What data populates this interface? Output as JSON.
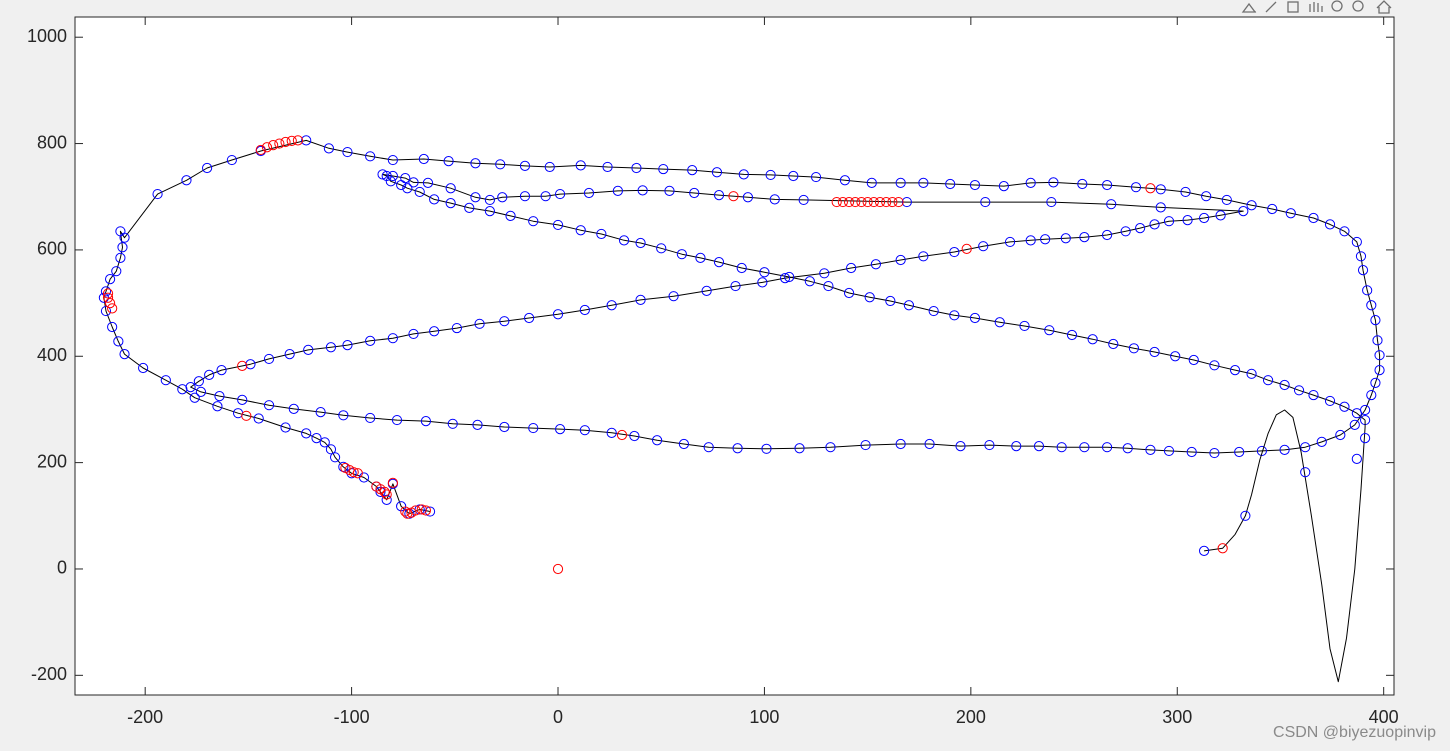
{
  "chart_data": {
    "type": "line",
    "xlim": [
      -234,
      405
    ],
    "ylim": [
      -237,
      1038
    ],
    "xticks": [
      -200,
      -100,
      0,
      100,
      200,
      300,
      400
    ],
    "yticks": [
      -200,
      0,
      200,
      400,
      600,
      800,
      1000
    ],
    "series": [
      {
        "color": "#000000",
        "marker_color": "#0000ff",
        "x": [
          -62,
          -67,
          -72,
          -76,
          -80,
          -83,
          -86,
          -88,
          -94,
          -100,
          -104,
          -108,
          -110,
          -113,
          -117,
          -122,
          -132,
          -145,
          -155,
          -165,
          -176,
          -182,
          -190,
          -201,
          -210,
          -213,
          -216,
          -219,
          -220,
          -219,
          -217,
          -214,
          -212,
          -211,
          -212,
          -210,
          -194,
          -180,
          -170,
          -158,
          -144,
          -122,
          -111,
          -102,
          -91,
          -80,
          -65,
          -53,
          -40,
          -28,
          -16,
          -4,
          11,
          24,
          38,
          51,
          65,
          77,
          90,
          103,
          114,
          125,
          139,
          152,
          166,
          177,
          190,
          202,
          216,
          229,
          240,
          254,
          266,
          280,
          292,
          304,
          314,
          324,
          336,
          346,
          355,
          366,
          374,
          381,
          387,
          389,
          390,
          392,
          394,
          396,
          397,
          398,
          398,
          396,
          394,
          391,
          386,
          379,
          370,
          362,
          352,
          341,
          330,
          318,
          307,
          296,
          287,
          276,
          266,
          255,
          244,
          233,
          222,
          209,
          195,
          180,
          166,
          149,
          132,
          117,
          101,
          87,
          73,
          61,
          48,
          37,
          26,
          13,
          1,
          -12,
          -26,
          -39,
          -51,
          -64,
          -78,
          -91,
          -104,
          -115,
          -128,
          -140,
          -153,
          -164,
          -173,
          -178,
          -174,
          -169,
          -163,
          -149,
          -140,
          -130,
          -121,
          -110,
          -102,
          -91,
          -80,
          -70,
          -60,
          -49,
          -38,
          -26,
          -14,
          0,
          13,
          26,
          40,
          56,
          72,
          86,
          99,
          110,
          129,
          142,
          154,
          166,
          177,
          192,
          206,
          219,
          229,
          236,
          246,
          255,
          266,
          275,
          282,
          289,
          296,
          305,
          313,
          321,
          332,
          292,
          268,
          239,
          207,
          169,
          119,
          105,
          92,
          78,
          66,
          54,
          41,
          29,
          15,
          1,
          -6,
          -16,
          -27,
          -33,
          -40,
          -52,
          -63,
          -70,
          -74,
          -80,
          -85,
          -83,
          -81,
          -76,
          -73,
          -67,
          -60,
          -52,
          -43,
          -33,
          -23,
          -12,
          0,
          11,
          21,
          32,
          40,
          50,
          60,
          69,
          78,
          89,
          100,
          112,
          122,
          131,
          141,
          151,
          161,
          170,
          182,
          192,
          202,
          214,
          226,
          238,
          249,
          259,
          269,
          279,
          289,
          299,
          308,
          318,
          328,
          336,
          344,
          352,
          359,
          366,
          374,
          381,
          387,
          391
        ],
        "values": [
          108,
          112,
          104,
          118,
          160,
          130,
          145,
          155,
          172,
          180,
          192,
          210,
          225,
          238,
          246,
          255,
          266,
          283,
          293,
          306,
          322,
          338,
          355,
          378,
          404,
          428,
          455,
          485,
          510,
          522,
          545,
          560,
          585,
          605,
          635,
          623,
          705,
          731,
          754,
          769,
          786,
          806,
          791,
          784,
          776,
          769,
          771,
          767,
          763,
          761,
          758,
          756,
          759,
          756,
          754,
          752,
          750,
          746,
          742,
          741,
          739,
          737,
          731,
          726,
          726,
          726,
          724,
          722,
          720,
          726,
          727,
          724,
          722,
          718,
          714,
          709,
          701,
          694,
          684,
          677,
          669,
          660,
          648,
          635,
          615,
          588,
          562,
          524,
          496,
          468,
          430,
          402,
          374,
          350,
          327,
          299,
          271,
          252,
          239,
          229,
          224,
          222,
          220,
          218,
          220,
          222,
          224,
          227,
          229,
          229,
          229,
          231,
          231,
          233,
          231,
          235,
          235,
          233,
          229,
          227,
          226,
          227,
          229,
          235,
          242,
          250,
          256,
          261,
          263,
          265,
          267,
          271,
          273,
          278,
          280,
          284,
          289,
          295,
          301,
          308,
          318,
          325,
          333,
          342,
          353,
          365,
          374,
          385,
          395,
          404,
          412,
          417,
          421,
          429,
          434,
          442,
          447,
          453,
          461,
          466,
          472,
          479,
          487,
          496,
          506,
          513,
          523,
          532,
          539,
          547,
          556,
          566,
          573,
          581,
          588,
          596,
          607,
          615,
          618,
          620,
          622,
          624,
          628,
          635,
          641,
          648,
          654,
          656,
          660,
          665,
          673,
          680,
          686,
          690,
          690,
          690,
          694,
          695,
          699,
          703,
          707,
          711,
          712,
          711,
          707,
          705,
          701,
          701,
          699,
          694,
          699,
          716,
          726,
          727,
          735,
          739,
          742,
          739,
          729,
          722,
          716,
          709,
          695,
          688,
          679,
          673,
          664,
          654,
          647,
          637,
          630,
          618,
          613,
          603,
          592,
          585,
          577,
          566,
          558,
          549,
          541,
          532,
          519,
          511,
          504,
          496,
          485,
          477,
          472,
          464,
          457,
          449,
          440,
          432,
          423,
          415,
          408,
          400,
          393,
          383,
          374,
          367,
          355,
          346,
          336,
          327,
          316,
          305,
          293,
          280
        ]
      },
      {
        "color": "#000000",
        "x": [
          391,
          391,
          389,
          386,
          382,
          378,
          374,
          370,
          365,
          360,
          356,
          352,
          348,
          344,
          340,
          336,
          333,
          328,
          322,
          313
        ],
        "values": [
          280,
          267,
          150,
          0,
          -130,
          -212,
          -150,
          -30,
          100,
          220,
          285,
          299,
          290,
          255,
          205,
          140,
          100,
          65,
          39,
          34
        ]
      },
      {
        "marker_color": "#0000ff",
        "x": [
          333,
          362,
          387,
          391,
          313
        ],
        "values": [
          100,
          182,
          207,
          246,
          34
        ]
      },
      {
        "marker_color": "#ff0000",
        "x": [
          0,
          -218,
          -218,
          -217,
          -216,
          -144,
          -141,
          -138,
          -135,
          -132,
          -129,
          -126,
          -151,
          -153,
          31,
          85,
          198,
          287,
          322,
          135,
          138,
          141,
          144,
          147,
          150,
          153,
          156,
          159,
          162,
          165,
          -80,
          -103,
          -101,
          -99,
          -97,
          -88,
          -86,
          -84,
          -83,
          -74,
          -73,
          -71,
          -69,
          -66,
          -64
        ],
        "values": [
          0,
          518,
          510,
          500,
          490,
          788,
          793,
          797,
          800,
          803,
          805,
          806,
          288,
          382,
          252,
          701,
          602,
          716,
          39,
          690,
          690,
          690,
          690,
          690,
          690,
          690,
          690,
          690,
          690,
          690,
          162,
          190,
          186,
          182,
          180,
          155,
          150,
          145,
          140,
          108,
          104,
          106,
          110,
          112,
          110
        ]
      }
    ]
  },
  "watermark": "CSDN @biyezuopinvip"
}
